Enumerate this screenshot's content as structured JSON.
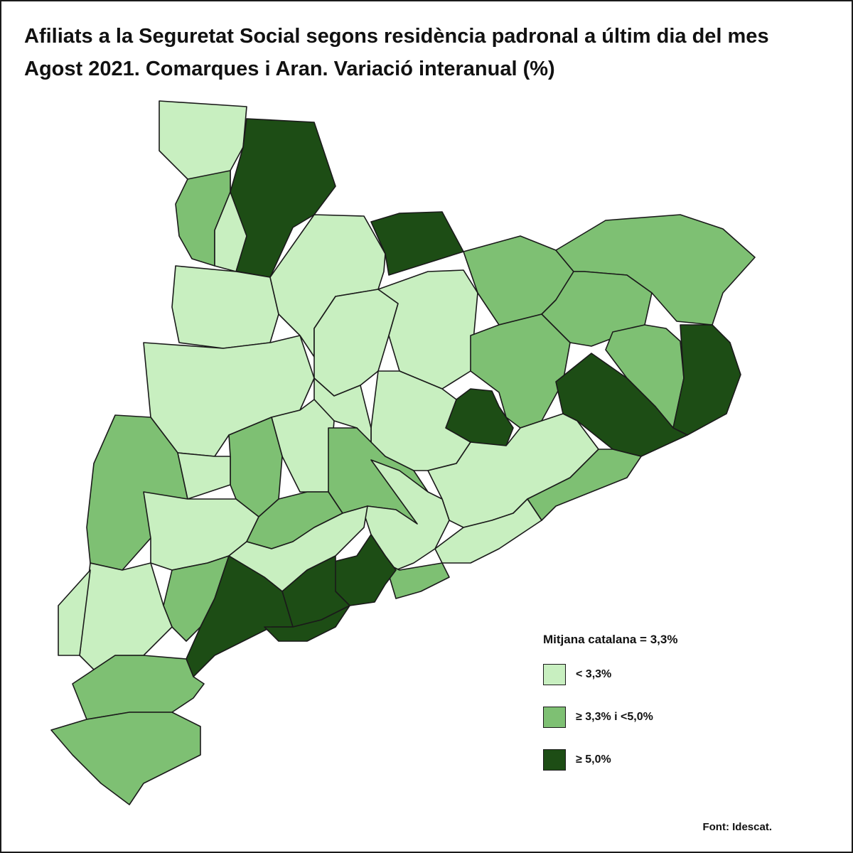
{
  "title": {
    "line1": "Afiliats a la Seguretat Social segons residència padronal a últim dia del mes",
    "line2": "Agost 2021. Comarques i Aran. Variació interanual (%)"
  },
  "legend": {
    "title": "Mitjana catalana = 3,3%",
    "items": [
      {
        "label": "< 3,3%",
        "color": "#c8efc0"
      },
      {
        "label": "≥ 3,3% i <5,0%",
        "color": "#7ec073"
      },
      {
        "label": "≥ 5,0%",
        "color": "#1d4d15"
      }
    ]
  },
  "source": "Font: Idescat.",
  "colors": {
    "light": "#c8efc0",
    "medium": "#7ec073",
    "dark": "#1d4d15",
    "border": "#1a1a1a"
  }
}
